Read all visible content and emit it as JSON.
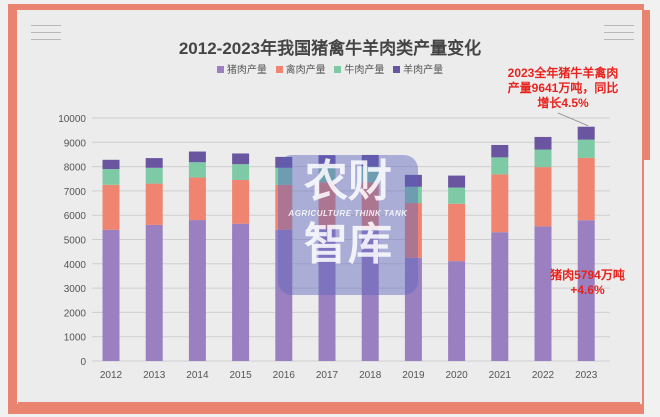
{
  "chart_data": {
    "type": "bar",
    "stacked": true,
    "title": "2012-2023年我国猪禽牛羊肉类产量变化",
    "categories": [
      "2012",
      "2013",
      "2014",
      "2015",
      "2016",
      "2017",
      "2018",
      "2019",
      "2020",
      "2021",
      "2022",
      "2023"
    ],
    "series": [
      {
        "name": "猪肉产量",
        "color": "#9a80c0",
        "values": [
          5400,
          5600,
          5800,
          5650,
          5400,
          5450,
          5400,
          4250,
          4110,
          5300,
          5540,
          5794
        ]
      },
      {
        "name": "禽肉产量",
        "color": "#ef8570",
        "values": [
          1850,
          1700,
          1750,
          1800,
          1850,
          1900,
          1950,
          2250,
          2360,
          2380,
          2440,
          2563
        ]
      },
      {
        "name": "牛肉产量",
        "color": "#7fcaa6",
        "values": [
          650,
          650,
          630,
          650,
          700,
          650,
          650,
          670,
          670,
          700,
          720,
          753
        ]
      },
      {
        "name": "羊肉产量",
        "color": "#6a56a0",
        "values": [
          380,
          400,
          440,
          440,
          450,
          470,
          480,
          490,
          490,
          510,
          520,
          531
        ]
      }
    ],
    "ylim": [
      0,
      10000
    ],
    "yticks": [
      "0",
      "1000",
      "2000",
      "3000",
      "4000",
      "5000",
      "6000",
      "7000",
      "8000",
      "9000",
      "10000"
    ],
    "xlabel": "",
    "ylabel": "",
    "grid": true,
    "legend_position": "top",
    "annotations": [
      {
        "lines": [
          "2023全年猪牛羊禽肉",
          "产量9641万吨，同比",
          "增长4.5%"
        ]
      },
      {
        "lines": [
          "猪肉5794万吨",
          "+4.6%"
        ]
      }
    ]
  },
  "watermark": {
    "text": "农财智库",
    "subtext": "AGRICULTURE THINK TANK"
  }
}
